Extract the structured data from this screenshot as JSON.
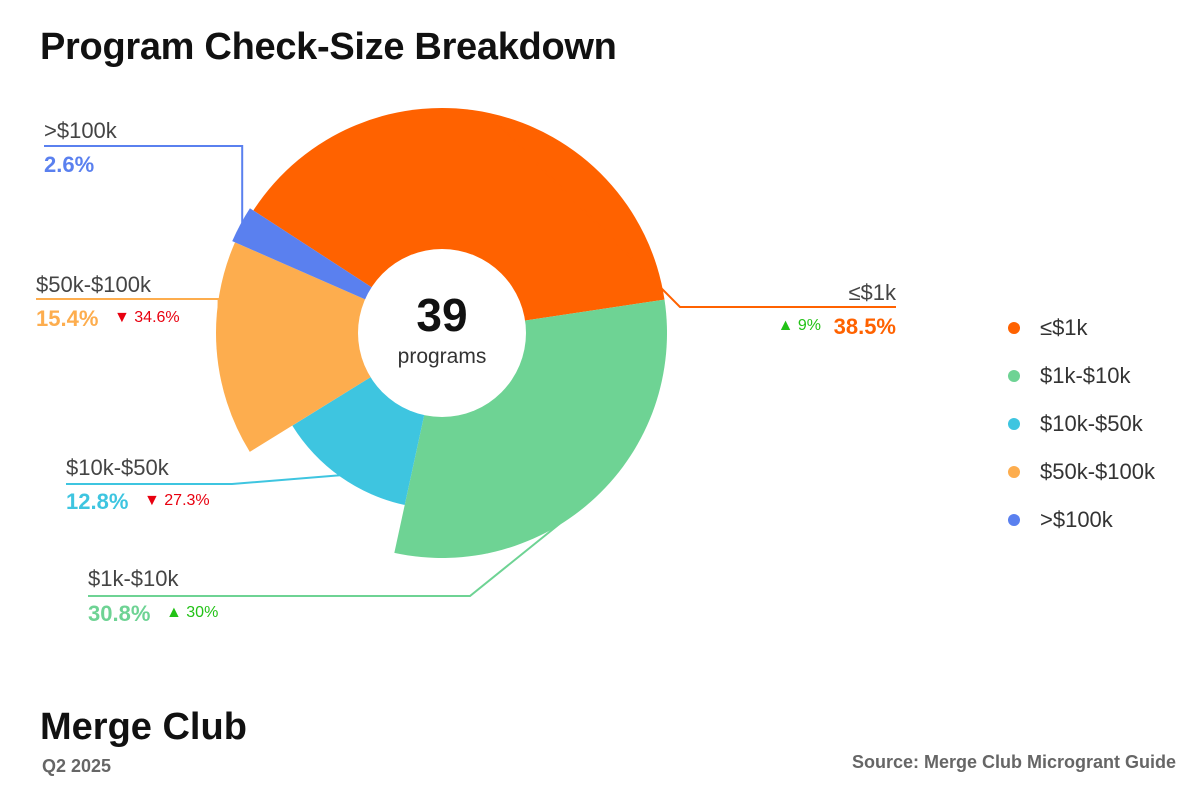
{
  "title": "Program Check-Size Breakdown",
  "brand": "Merge Club",
  "period": "Q2 2025",
  "source": "Source: Merge Club Microgrant Guide",
  "chart_data": {
    "type": "pie",
    "variant": "donut",
    "title": "Program Check-Size Breakdown",
    "center_value": "39",
    "center_label": "programs",
    "legend_position": "right",
    "slices": [
      {
        "label": "≤$1k",
        "percent": 38.5,
        "percent_label": "38.5%",
        "color": "#ff6200",
        "change": "9%",
        "change_direction": "up"
      },
      {
        "label": "$1k-$10k",
        "percent": 30.8,
        "percent_label": "30.8%",
        "color": "#6ed394",
        "change": "30%",
        "change_direction": "up"
      },
      {
        "label": "$10k-$50k",
        "percent": 12.8,
        "percent_label": "12.8%",
        "color": "#3ec5e0",
        "change": "27.3%",
        "change_direction": "down"
      },
      {
        "label": "$50k-$100k",
        "percent": 15.4,
        "percent_label": "15.4%",
        "color": "#fdad4e",
        "change": "34.6%",
        "change_direction": "down"
      },
      {
        "label": ">$100k",
        "percent": 2.6,
        "percent_label": "2.6%",
        "color": "#5a80ef",
        "change": null,
        "change_direction": null
      }
    ]
  },
  "legend": [
    "≤$1k",
    "$1k-$10k",
    "$10k-$50k",
    "$50k-$100k",
    ">$100k"
  ],
  "colors": {
    "up": "#22c216",
    "down": "#e8000f",
    "label": "#444444"
  }
}
